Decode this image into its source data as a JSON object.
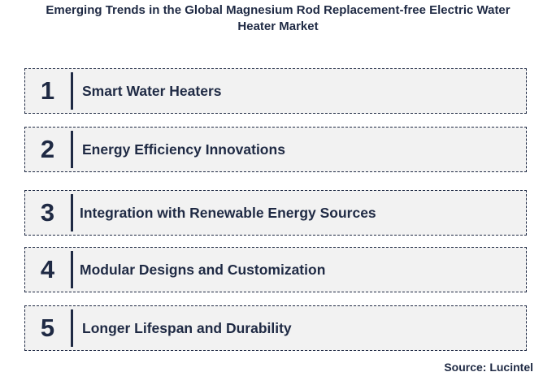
{
  "title": {
    "line1": "Emerging Trends in the Global Magnesium Rod Replacement-free Electric Water",
    "line2": "Heater Market"
  },
  "trends": [
    {
      "number": "1",
      "label": "Smart Water Heaters"
    },
    {
      "number": "2",
      "label": "Energy Efficiency Innovations"
    },
    {
      "number": "3",
      "label": "Integration with Renewable Energy Sources"
    },
    {
      "number": "4",
      "label": "Modular Designs and Customization"
    },
    {
      "number": "5",
      "label": "Longer Lifespan and Durability"
    }
  ],
  "source": "Source: Lucintel",
  "colors": {
    "text": "#1f2a44",
    "box_fill": "#f2f2f2",
    "box_border": "#1f2a44"
  }
}
